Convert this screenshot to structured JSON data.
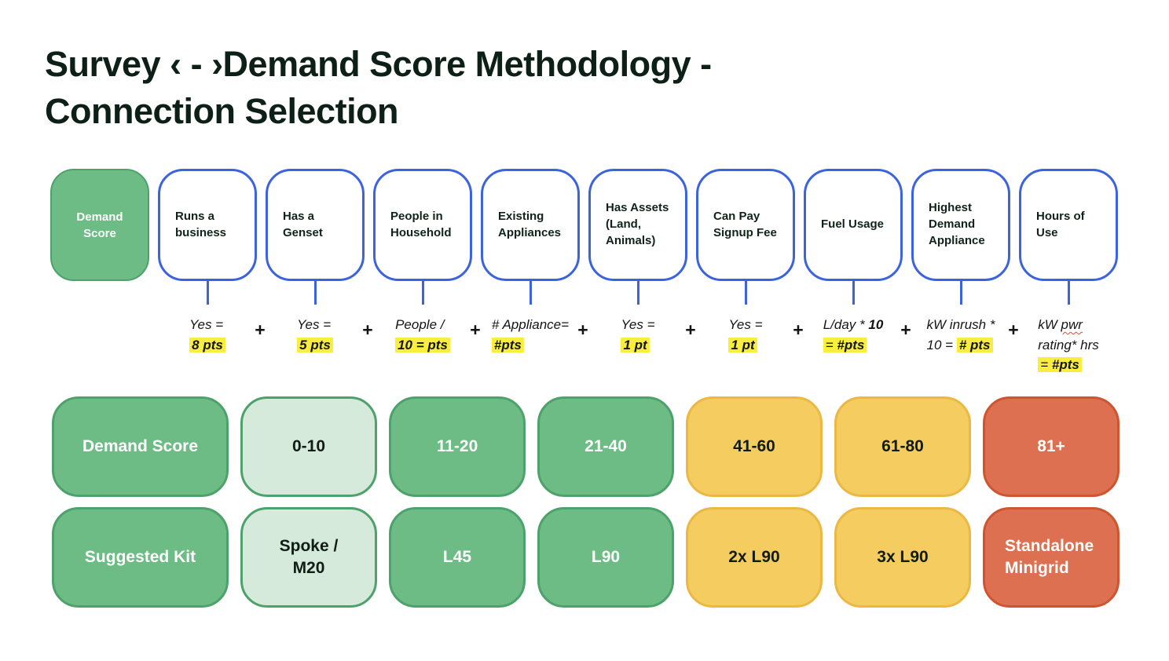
{
  "title": {
    "line1": "Survey ‹ - ›Demand Score Methodology -",
    "line2": "Connection Selection"
  },
  "score_node": "Demand Score",
  "plus": "+",
  "criteria": [
    "Runs a business",
    "Has a Genset",
    "People in Household",
    "Existing Appliances",
    "Has Assets (Land, Animals)",
    "Can Pay Signup Fee",
    "Fuel Usage",
    "Highest Demand Appliance",
    "Hours of Use"
  ],
  "formulas": [
    {
      "top": "Yes =",
      "hl": "8 pts"
    },
    {
      "top": "Yes =",
      "hl": "5 pts"
    },
    {
      "top": "People /",
      "hl": "10 = pts"
    },
    {
      "top": "# Appliance=",
      "hl": "#pts"
    },
    {
      "top": "Yes =",
      "hl": "1 pt"
    },
    {
      "top": "Yes =",
      "hl": "1 pt"
    },
    {
      "top_pre": "L/day * ",
      "top_bold": "10",
      "hl_pre": "= ",
      "hl_bold": "#pts"
    },
    {
      "top": "kW inrush *",
      "mid_pre": "10 = ",
      "hl_bold": "# pts"
    },
    {
      "top_pre": "kW ",
      "top_misspelled": "pwr",
      "mid": "rating* hrs",
      "hl_pre": "= ",
      "hl_bold": "#pts"
    }
  ],
  "score_table": {
    "rows": [
      {
        "header": "Demand Score",
        "cells": [
          "0-10",
          "11-20",
          "21-40",
          "41-60",
          "61-80",
          "81+"
        ]
      },
      {
        "header": "Suggested Kit",
        "cells": [
          "Spoke / M20",
          "L45",
          "L90",
          "2x L90",
          "3x L90",
          "Standalone Minigrid"
        ]
      }
    ]
  },
  "colors": {
    "green": "#6ebc85",
    "green_border": "#4da16a",
    "light_green": "#d6eadb",
    "yellow": "#f4cc60",
    "yellow_border": "#ebb844",
    "red": "#dc7050",
    "red_border": "#cf5430",
    "blue": "#3b63de",
    "highlight_yellow": "#f9ee3e"
  }
}
